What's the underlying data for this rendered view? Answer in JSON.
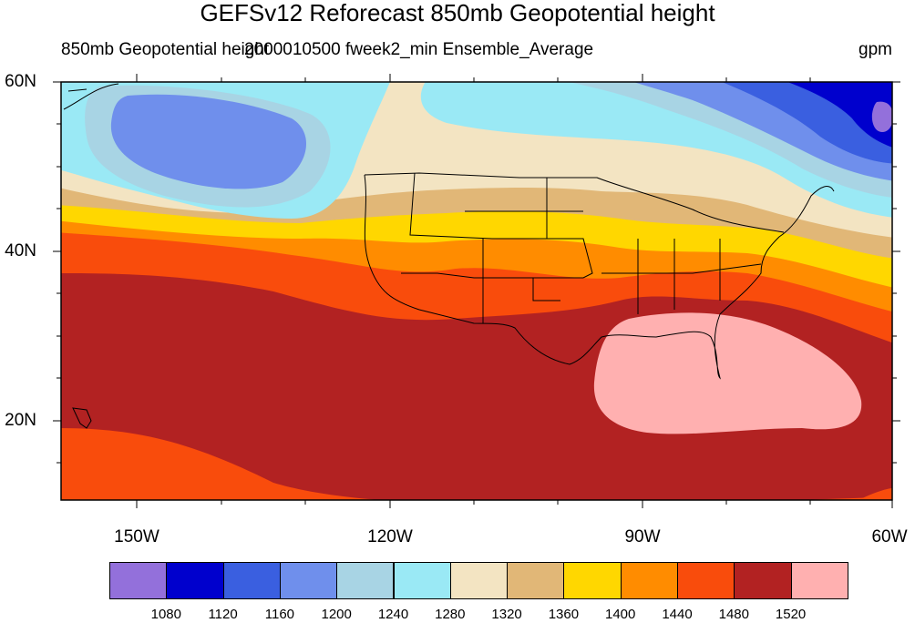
{
  "title": "GEFSv12 Reforecast 850mb Geopotential height",
  "subtitle": {
    "left": "850mb Geopotential height",
    "center": "2000010500 fweek2_min Ensemble_Average",
    "right": "gpm"
  },
  "axes": {
    "lat_labels": [
      "60N",
      "40N",
      "20N"
    ],
    "lon_labels": [
      "150W",
      "120W",
      "90W",
      "60W"
    ]
  },
  "colorbar": {
    "colors": [
      "#9370db",
      "#0000cd",
      "#3a5fe0",
      "#6f8fec",
      "#a8d4e4",
      "#9ae9f5",
      "#f3e4c2",
      "#e1b777",
      "#ffd700",
      "#ff8c00",
      "#f94c0c",
      "#b22222",
      "#ffb0b0"
    ],
    "labels": [
      "1080",
      "1120",
      "1160",
      "1200",
      "1240",
      "1280",
      "1320",
      "1360",
      "1400",
      "1440",
      "1480",
      "1520"
    ]
  }
}
